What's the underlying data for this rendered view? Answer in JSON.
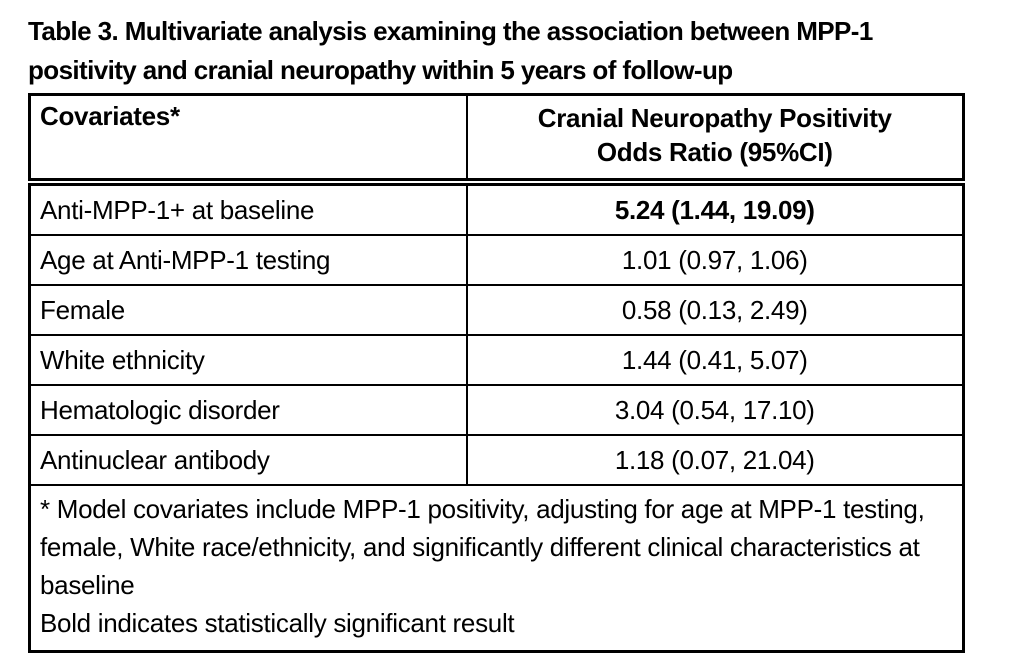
{
  "page_title": "Table 3. Multivariate analysis examining the association between MPP-1 positivity and cranial neuropathy within 5 years of follow-up",
  "table": {
    "column_headers": {
      "covariates": "Covariates*",
      "odds_ratio": "Cranial Neuropathy Positivity\nOdds Ratio (95%CI)"
    },
    "rows": [
      {
        "covariate": "Anti-MPP-1+ at baseline",
        "odds_ratio": "5.24 (1.44, 19.09)",
        "significant": true
      },
      {
        "covariate": "Age at Anti-MPP-1 testing",
        "odds_ratio": "1.01 (0.97, 1.06)",
        "significant": false
      },
      {
        "covariate": "Female",
        "odds_ratio": "0.58 (0.13, 2.49)",
        "significant": false
      },
      {
        "covariate": "White ethnicity",
        "odds_ratio": "1.44 (0.41, 5.07)",
        "significant": false
      },
      {
        "covariate": "Hematologic disorder",
        "odds_ratio": "3.04 (0.54, 17.10)",
        "significant": false
      },
      {
        "covariate": "Antinuclear antibody",
        "odds_ratio": "1.18 (0.07, 21.04)",
        "significant": false
      }
    ],
    "footnotes": {
      "model": "* Model covariates include MPP-1 positivity, adjusting for age at MPP-1 testing, female, White race/ethnicity, and significantly different clinical characteristics at baseline",
      "bold_note": "Bold indicates statistically significant result"
    }
  },
  "colors": {
    "text": "#000000",
    "border": "#000000",
    "background": "#ffffff"
  }
}
